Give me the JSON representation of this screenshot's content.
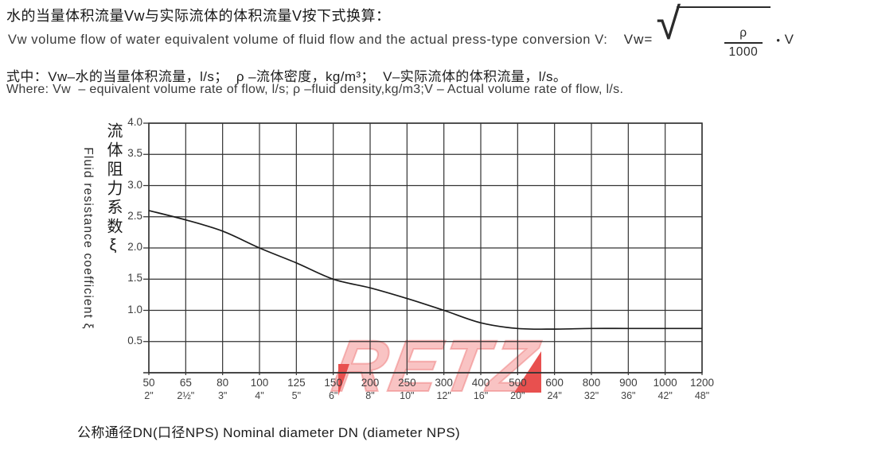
{
  "header": {
    "line1_zh": "水的当量体积流量Vw与实际流体的体积流量V按下式换算：",
    "line2_en": "Vw volume flow of water equivalent volume of fluid flow and the actual press-type conversion V:  ",
    "formula": {
      "lhs": "Vw=",
      "numerator": "ρ",
      "denominator": "1000",
      "dot": "•",
      "rhs": "V"
    },
    "line3_zh": "式中：Vw–水的当量体积流量，l/s；  ρ –流体密度，kg/m³；  V–实际流体的体积流量，l/s。",
    "line4_en": "Where: Vw  – equivalent volume rate of flow, l/s; ρ –fluid density,kg/m3;V – Actual volume rate of flow, l/s."
  },
  "chart_data": {
    "type": "line",
    "title": "",
    "ylabel_zh": "流体阻力系数ξ",
    "ylabel_en": "Fluid resistance coefficient ξ",
    "xlabel": "公称通径DN(口径NPS) Nominal diameter DN (diameter NPS)",
    "ylim": [
      0,
      4.0
    ],
    "grid": true,
    "legend": "none",
    "y_ticks": [
      "4.0",
      "3.5",
      "3.0",
      "2.5",
      "2.0",
      "1.5",
      "1.0",
      "0.5"
    ],
    "x_ticks_dn": [
      "50",
      "65",
      "80",
      "100",
      "125",
      "150",
      "200",
      "250",
      "300",
      "400",
      "500",
      "600",
      "800",
      "900",
      "1000",
      "1200"
    ],
    "x_ticks_inch": [
      "2\"",
      "2½\"",
      "3\"",
      "4\"",
      "5\"",
      "6\"",
      "8\"",
      "10\"",
      "12\"",
      "16\"",
      "20\"",
      "24\"",
      "32\"",
      "36\"",
      "42\"",
      "48\""
    ],
    "series": [
      {
        "name": "fluid-resistance-coefficient",
        "x_dn": [
          50,
          65,
          80,
          100,
          125,
          150,
          200,
          250,
          300,
          400,
          500,
          600,
          800,
          900,
          1000,
          1200
        ],
        "values": [
          2.6,
          2.45,
          2.27,
          2.0,
          1.76,
          1.5,
          1.36,
          1.19,
          1.0,
          0.8,
          0.71,
          0.7,
          0.71,
          0.71,
          0.71,
          0.71
        ]
      }
    ],
    "line_color": "#1c1c1c",
    "grid_color": "#333333"
  },
  "watermark": {
    "text": "RETZ",
    "color": "#f9c3c3",
    "accent": "#e8504f"
  }
}
